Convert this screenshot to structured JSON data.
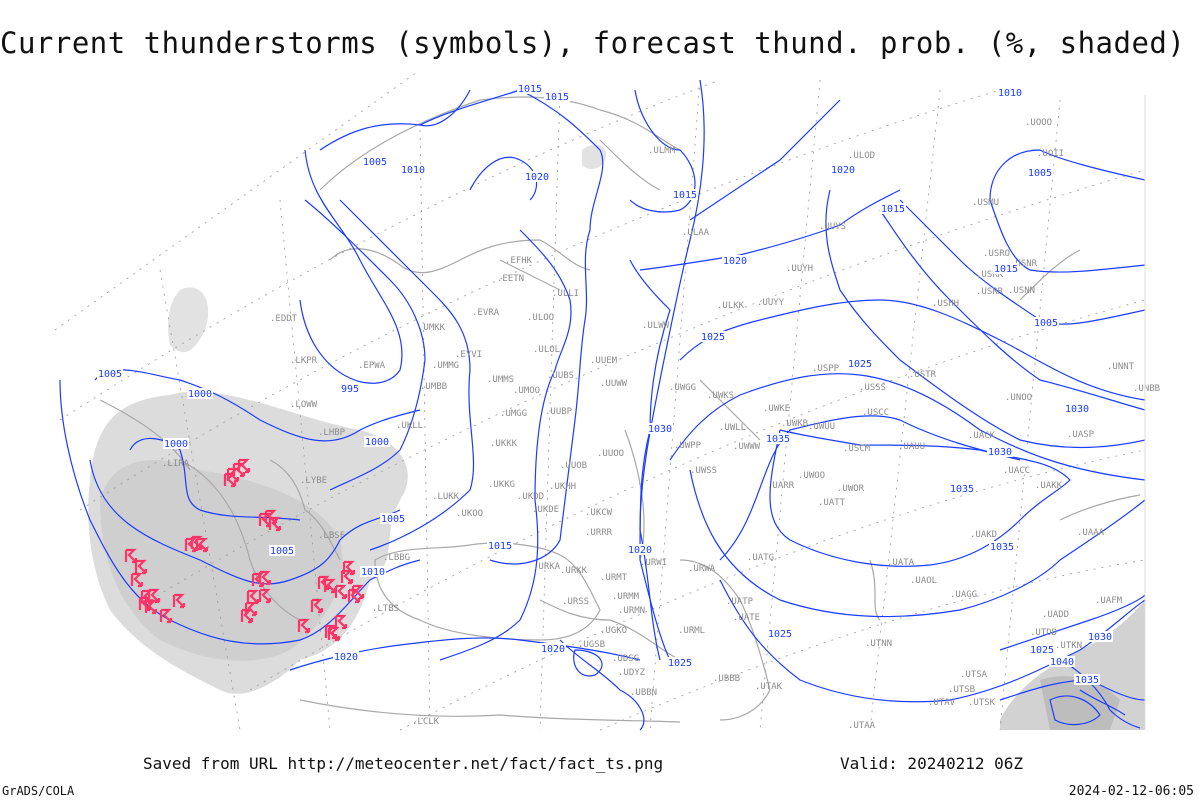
{
  "title": "Current thunderstorms (symbols), forecast thund. prob. (%, shaded)",
  "footer": {
    "saved_from": "Saved from URL http://meteocenter.net/fact/fact_ts.png",
    "valid": "Valid: 20240212 06Z",
    "software": "GrADS/COLA",
    "timestamp": "2024-02-12-06:05"
  },
  "colors": {
    "isobar": "#1a3cff",
    "storm_symbol": "#ff3366",
    "shading": "#c8c8c8",
    "coastline": "#a8a8a8"
  },
  "legend": {
    "isobar_unit": "hPa",
    "storm_symbol_icon": "thunderstorm-icon"
  },
  "stations": [
    "EDDT",
    "LKPR",
    "EPWA",
    "UMKK",
    "EVRA",
    "EYVI",
    "UMMG",
    "UMBB",
    "LOWW",
    "LHBP",
    "LIRA",
    "LYBE",
    "LBSF",
    "LBBG",
    "LTBS",
    "UKLL",
    "UMMS",
    "UMOO",
    "ULOO",
    "ULOL",
    "UUBS",
    "UMGG",
    "UUBP",
    "UKKK",
    "UUOB",
    "UUOO",
    "UKKG",
    "UKHH",
    "UKDD",
    "UKDE",
    "LUKK",
    "UKOO",
    "UKCW",
    "URRR",
    "URKA",
    "URKK",
    "URMT",
    "URWI",
    "URSS",
    "URMM",
    "URMN",
    "UGKO",
    "UGSB",
    "UDSG",
    "UDYZ",
    "UBBN",
    "URML",
    "UBBB",
    "UATE",
    "UATG",
    "URWA",
    "UATP",
    "UTAK",
    "ULAA",
    "ULMM",
    "EFHK",
    "EETN",
    "ULLI",
    "UUEM",
    "UUWW",
    "ULWW",
    "ULKK",
    "UUYY",
    "UUYH",
    "UUYS",
    "ULOD",
    "UOOO",
    "UOII",
    "USMU",
    "USRO",
    "USNR",
    "USRK",
    "USRR",
    "USNN",
    "USHH",
    "USPP",
    "USSS",
    "USTR",
    "USCC",
    "UWKE",
    "UWKB",
    "UWUU",
    "UWGG",
    "UWKS",
    "UWLL",
    "UWPP",
    "UWWW",
    "UWSS",
    "UARR",
    "USCM",
    "UAUU",
    "UACK",
    "UASP",
    "UNOO",
    "UWOO",
    "UWOR",
    "UACC",
    "UAKK",
    "UATT",
    "UAKD",
    "UATA",
    "UAOL",
    "UAGG",
    "UAAA",
    "UAFM",
    "UADD",
    "UNNT",
    "UNBB",
    "UTNN",
    "UTSA",
    "UTSB",
    "UTAV",
    "UTSK",
    "UTAA",
    "UTDD",
    "UTKN",
    "LCLK"
  ],
  "isobar_labels": [
    "995",
    "1000",
    "1000",
    "1000",
    "1005",
    "1005",
    "1005",
    "1005",
    "1005",
    "1005",
    "1010",
    "1010",
    "1010",
    "1015",
    "1015",
    "1015",
    "1015",
    "1015",
    "1015",
    "1020",
    "1020",
    "1020",
    "1020",
    "1020",
    "1020",
    "1025",
    "1025",
    "1025",
    "1025",
    "1025",
    "1030",
    "1030",
    "1030",
    "1030",
    "1035",
    "1035",
    "1035",
    "1035",
    "1040"
  ]
}
